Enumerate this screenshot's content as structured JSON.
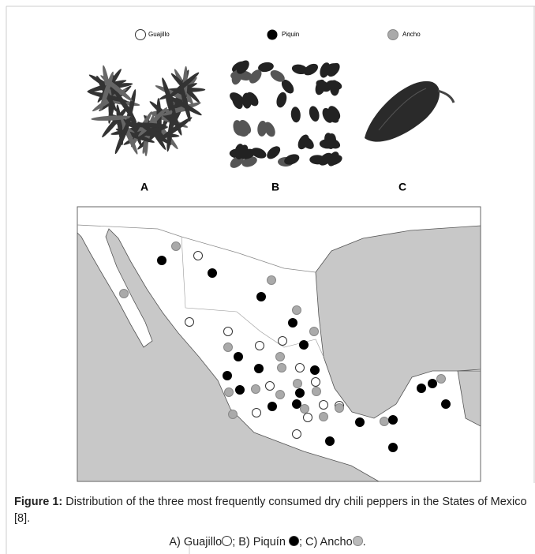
{
  "legend": {
    "items": [
      "Guajillo",
      "Piquin",
      "Ancho"
    ]
  },
  "panel_labels": [
    "A",
    "B",
    "C"
  ],
  "caption": {
    "label": "Figure 1:",
    "text": "Distribution of the three most frequently consumed dry chili peppers in the States of Mexico [8].",
    "key": [
      "A) Guajillo",
      "; B) Piquín ",
      "; C) Ancho",
      "."
    ]
  }
}
